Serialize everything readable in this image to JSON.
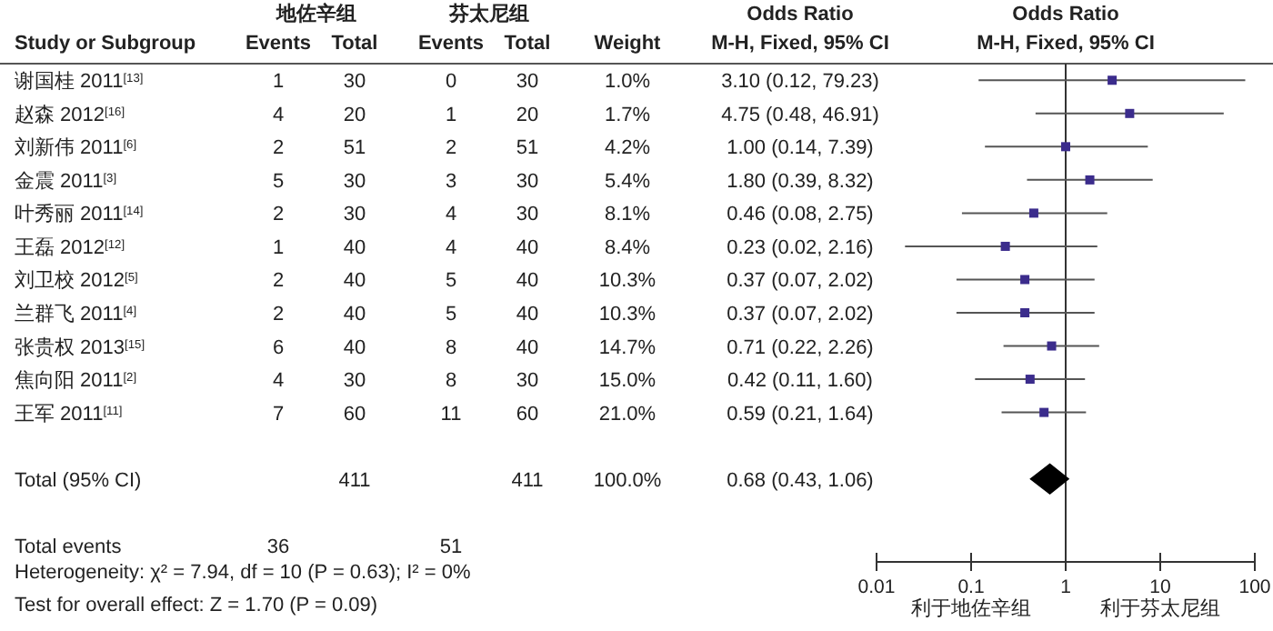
{
  "chart_data": [
    {
      "type": "other",
      "categories": [
        "Study or Subgroup",
        "Events",
        "Total",
        "Events",
        "Total",
        "Weight",
        "M-H, Fixed, 95% CI"
      ],
      "cell_labels": [
        [
          null,
          "地佐辛组",
          null,
          "芬太尼组",
          null,
          null,
          "Odds Ratio"
        ],
        [
          "谢国桂 2011$^{[13]}$",
          "1",
          "30",
          "0",
          "30",
          "1.0%",
          "3.10 (0.12, 79.23)"
        ],
        [
          "赵森 2012$^{[16]}$",
          "4",
          "20",
          "1",
          "20",
          "1.7%",
          "4.75 (0.48, 46.91)"
        ],
        [
          "刘新伟 2011$^{[6]}$",
          "2",
          "51",
          "2",
          "51",
          "4.2%",
          "1.00 (0.14, 7.39)"
        ],
        [
          "金震 2011$^{[3]}$",
          "5",
          "30",
          "3",
          "30",
          "5.4%",
          "1.80 (0.39, 8.32)"
        ],
        [
          "叶秀丽 2011$^{[14]}$",
          "2",
          "30",
          "4",
          "30",
          "8.1%",
          "0.46 (0.08, 2.75)"
        ],
        [
          "王磊 2012$^{[12]}$",
          "1",
          "40",
          "4",
          "40",
          "8.4%",
          "0.23 (0.02, 2.16)"
        ],
        [
          "刘卫校 2012$^{[5]}$",
          "2",
          "40",
          "5",
          "40",
          "10.3%",
          "0.37 (0.07, 2.02)"
        ],
        [
          "兰群飞 2011$^{[4]}$",
          "2",
          "40",
          "5",
          "40",
          "10.3%",
          "0.37 (0.07, 2.02)"
        ],
        [
          "张贵权 2013$^{[15]}$",
          "6",
          "40",
          "8",
          "40",
          "14.7%",
          "0.71 (0.22, 2.26)"
        ],
        [
          "焦向阳 2011$^{[2]}$",
          "4",
          "30",
          "8",
          "30",
          "15.0%",
          "0.42 (0.11, 1.60)"
        ],
        [
          "王军 2011$^{[11]}$",
          "7",
          "60",
          "11",
          "60",
          "21.0%",
          "0.59 (0.21, 1.64)"
        ],
        [
          null,
          null,
          null,
          null,
          null,
          null,
          null
        ],
        [
          "Total (95% CI)",
          null,
          "411",
          null,
          "411",
          "100.0%",
          "0.68 (0.43, 1.06)"
        ],
        [
          null,
          null,
          null,
          null,
          null,
          null,
          null
        ],
        [
          "Total events",
          "36",
          null,
          "51",
          null,
          null,
          null
        ]
      ],
      "annotations": [
        "Heterogeneity: χ² = 7.94, df = 10 (P = 0.63); I² = 0%",
        "Test for overall effect: Z = 1.70 (P = 0.09)"
      ]
    },
    {
      "type": "scatter",
      "orientation": "horizontal",
      "title": "Odds Ratio",
      "subtitle": "M-H, Fixed, 95% CI",
      "categories": [
        null,
        null,
        null,
        null,
        null,
        null,
        null,
        null,
        null,
        null,
        null,
        null,
        null,
        null,
        null
      ],
      "series": [
        {
          "color": "#3b2c8c",
          "marker": "square",
          "values": [
            3.1,
            4.75,
            1.0,
            1.8,
            0.46,
            0.23,
            0.37,
            0.37,
            0.71,
            0.42,
            0.59,
            null,
            null,
            null,
            null
          ],
          "errors": [
            [
              0.12,
              79.23
            ],
            [
              0.48,
              46.91
            ],
            [
              0.14,
              7.39
            ],
            [
              0.39,
              8.32
            ],
            [
              0.08,
              2.75
            ],
            [
              0.02,
              2.16
            ],
            [
              0.07,
              2.02
            ],
            [
              0.07,
              2.02
            ],
            [
              0.22,
              2.26
            ],
            [
              0.11,
              1.6
            ],
            [
              0.21,
              1.64
            ],
            null,
            null,
            null,
            null
          ]
        },
        {
          "color": "#000000",
          "marker": "diamond",
          "values": [
            null,
            null,
            null,
            null,
            null,
            null,
            null,
            null,
            null,
            null,
            null,
            null,
            0.68,
            null,
            null
          ],
          "errors": [
            null,
            null,
            null,
            null,
            null,
            null,
            null,
            null,
            null,
            null,
            null,
            null,
            [
              0.43,
              1.06
            ],
            null,
            null
          ]
        }
      ],
      "log": "x",
      "xlim": [
        0.01,
        100
      ],
      "xticks": [
        0.01,
        0.1,
        1,
        10,
        100
      ],
      "ref_lines": [
        {
          "axis": "x",
          "value": 1,
          "color": "#333333"
        }
      ],
      "annotations": [
        "利于地佐辛组",
        "利于芬太尼组"
      ]
    }
  ]
}
